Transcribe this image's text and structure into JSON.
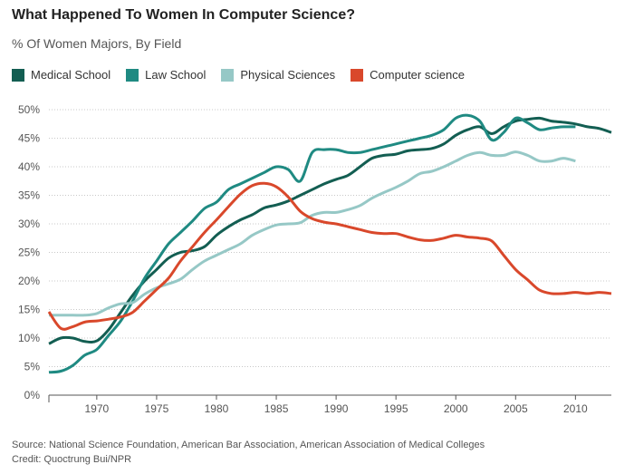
{
  "title": "What Happened To Women In Computer Science?",
  "subtitle": "% Of Women Majors, By Field",
  "footer": {
    "source": "Source: National Science Foundation, American Bar Association, American Association of Medical Colleges",
    "credit": "Credit: Quoctrung Bui/NPR"
  },
  "chart_data": {
    "type": "line",
    "title": "What Happened To Women In Computer Science?",
    "subtitle": "% Of Women Majors, By Field",
    "xlabel": "",
    "ylabel": "",
    "xlim": [
      1966,
      2013
    ],
    "ylim": [
      0,
      50
    ],
    "x_ticks": [
      1970,
      1975,
      1980,
      1985,
      1990,
      1995,
      2000,
      2005,
      2010
    ],
    "x_tick_labels": [
      "1970",
      "1975",
      "1980",
      "1985",
      "1990",
      "1995",
      "2000",
      "2005",
      "2010"
    ],
    "y_ticks": [
      0,
      5,
      10,
      15,
      20,
      25,
      30,
      35,
      40,
      45,
      50
    ],
    "y_tick_labels": [
      "0%",
      "5%",
      "10%",
      "15%",
      "20%",
      "25%",
      "30%",
      "35%",
      "40%",
      "45%",
      "50%"
    ],
    "grid": "horizontal dotted",
    "legend_position": "top-left",
    "series": [
      {
        "name": "Medical School",
        "color": "#135e52",
        "points": [
          [
            1966,
            9
          ],
          [
            1967,
            10
          ],
          [
            1968,
            10
          ],
          [
            1969,
            9.4
          ],
          [
            1970,
            9.5
          ],
          [
            1971,
            11.5
          ],
          [
            1972,
            14.5
          ],
          [
            1973,
            17.5
          ],
          [
            1974,
            20
          ],
          [
            1975,
            22
          ],
          [
            1976,
            24
          ],
          [
            1977,
            25
          ],
          [
            1978,
            25.3
          ],
          [
            1979,
            26
          ],
          [
            1980,
            28
          ],
          [
            1981,
            29.5
          ],
          [
            1982,
            30.7
          ],
          [
            1983,
            31.6
          ],
          [
            1984,
            32.8
          ],
          [
            1985,
            33.3
          ],
          [
            1986,
            34
          ],
          [
            1987,
            35
          ],
          [
            1988,
            36
          ],
          [
            1989,
            37
          ],
          [
            1990,
            37.8
          ],
          [
            1991,
            38.5
          ],
          [
            1992,
            40
          ],
          [
            1993,
            41.5
          ],
          [
            1994,
            42
          ],
          [
            1995,
            42.2
          ],
          [
            1996,
            42.8
          ],
          [
            1997,
            43
          ],
          [
            1998,
            43.2
          ],
          [
            1999,
            44
          ],
          [
            2000,
            45.5
          ],
          [
            2001,
            46.5
          ],
          [
            2002,
            47
          ],
          [
            2003,
            45.8
          ],
          [
            2004,
            47
          ],
          [
            2005,
            48
          ],
          [
            2006,
            48.3
          ],
          [
            2007,
            48.5
          ],
          [
            2008,
            48
          ],
          [
            2009,
            47.8
          ],
          [
            2010,
            47.5
          ],
          [
            2011,
            47
          ],
          [
            2012,
            46.7
          ],
          [
            2013,
            46
          ]
        ]
      },
      {
        "name": "Law School",
        "color": "#1f8a82",
        "points": [
          [
            1966,
            4
          ],
          [
            1967,
            4.2
          ],
          [
            1968,
            5.2
          ],
          [
            1969,
            7
          ],
          [
            1970,
            8
          ],
          [
            1971,
            10.5
          ],
          [
            1972,
            13
          ],
          [
            1973,
            16.5
          ],
          [
            1974,
            20.5
          ],
          [
            1975,
            23.5
          ],
          [
            1976,
            26.5
          ],
          [
            1977,
            28.5
          ],
          [
            1978,
            30.5
          ],
          [
            1979,
            32.7
          ],
          [
            1980,
            33.8
          ],
          [
            1981,
            36
          ],
          [
            1982,
            37
          ],
          [
            1983,
            38
          ],
          [
            1984,
            39
          ],
          [
            1985,
            40
          ],
          [
            1986,
            39.5
          ],
          [
            1987,
            37.5
          ],
          [
            1988,
            42.5
          ],
          [
            1989,
            43
          ],
          [
            1990,
            43
          ],
          [
            1991,
            42.5
          ],
          [
            1992,
            42.5
          ],
          [
            1993,
            43
          ],
          [
            1994,
            43.5
          ],
          [
            1995,
            44
          ],
          [
            1996,
            44.5
          ],
          [
            1997,
            45
          ],
          [
            1998,
            45.5
          ],
          [
            1999,
            46.5
          ],
          [
            2000,
            48.5
          ],
          [
            2001,
            49
          ],
          [
            2002,
            48
          ],
          [
            2003,
            44.7
          ],
          [
            2004,
            46
          ],
          [
            2005,
            48.5
          ],
          [
            2006,
            47.7
          ],
          [
            2007,
            46.5
          ],
          [
            2008,
            46.8
          ],
          [
            2009,
            47
          ],
          [
            2010,
            47
          ]
        ]
      },
      {
        "name": "Physical Sciences",
        "color": "#96c8c6",
        "points": [
          [
            1966,
            14
          ],
          [
            1967,
            14
          ],
          [
            1968,
            14
          ],
          [
            1969,
            14
          ],
          [
            1970,
            14.3
          ],
          [
            1971,
            15.3
          ],
          [
            1972,
            16
          ],
          [
            1973,
            16.2
          ],
          [
            1974,
            17.7
          ],
          [
            1975,
            18.8
          ],
          [
            1976,
            19.5
          ],
          [
            1977,
            20.3
          ],
          [
            1978,
            22
          ],
          [
            1979,
            23.5
          ],
          [
            1980,
            24.5
          ],
          [
            1981,
            25.5
          ],
          [
            1982,
            26.5
          ],
          [
            1983,
            28
          ],
          [
            1984,
            29
          ],
          [
            1985,
            29.8
          ],
          [
            1986,
            30
          ],
          [
            1987,
            30.2
          ],
          [
            1988,
            31.5
          ],
          [
            1989,
            32
          ],
          [
            1990,
            32
          ],
          [
            1991,
            32.5
          ],
          [
            1992,
            33.2
          ],
          [
            1993,
            34.5
          ],
          [
            1994,
            35.5
          ],
          [
            1995,
            36.4
          ],
          [
            1996,
            37.5
          ],
          [
            1997,
            38.8
          ],
          [
            1998,
            39.2
          ],
          [
            1999,
            40
          ],
          [
            2000,
            41
          ],
          [
            2001,
            42
          ],
          [
            2002,
            42.5
          ],
          [
            2003,
            42
          ],
          [
            2004,
            42
          ],
          [
            2005,
            42.6
          ],
          [
            2006,
            42
          ],
          [
            2007,
            41
          ],
          [
            2008,
            41
          ],
          [
            2009,
            41.5
          ],
          [
            2010,
            41
          ]
        ]
      },
      {
        "name": "Computer science",
        "color": "#d9482b",
        "points": [
          [
            1966,
            14.6
          ],
          [
            1967,
            11.7
          ],
          [
            1968,
            12
          ],
          [
            1969,
            12.8
          ],
          [
            1970,
            13
          ],
          [
            1971,
            13.3
          ],
          [
            1972,
            13.7
          ],
          [
            1973,
            14.5
          ],
          [
            1974,
            16.5
          ],
          [
            1975,
            18.5
          ],
          [
            1976,
            20.5
          ],
          [
            1977,
            23.5
          ],
          [
            1978,
            26
          ],
          [
            1979,
            28.5
          ],
          [
            1980,
            30.7
          ],
          [
            1981,
            33
          ],
          [
            1982,
            35.2
          ],
          [
            1983,
            36.7
          ],
          [
            1984,
            37.1
          ],
          [
            1985,
            36.5
          ],
          [
            1986,
            34.7
          ],
          [
            1987,
            32.2
          ],
          [
            1988,
            30.9
          ],
          [
            1989,
            30.3
          ],
          [
            1990,
            30
          ],
          [
            1991,
            29.5
          ],
          [
            1992,
            29
          ],
          [
            1993,
            28.5
          ],
          [
            1994,
            28.3
          ],
          [
            1995,
            28.3
          ],
          [
            1996,
            27.7
          ],
          [
            1997,
            27.2
          ],
          [
            1998,
            27.1
          ],
          [
            1999,
            27.5
          ],
          [
            2000,
            28
          ],
          [
            2001,
            27.7
          ],
          [
            2002,
            27.5
          ],
          [
            2003,
            27
          ],
          [
            2004,
            24.5
          ],
          [
            2005,
            22
          ],
          [
            2006,
            20.2
          ],
          [
            2007,
            18.4
          ],
          [
            2008,
            17.8
          ],
          [
            2009,
            17.8
          ],
          [
            2010,
            18
          ],
          [
            2011,
            17.8
          ],
          [
            2012,
            18
          ],
          [
            2013,
            17.8
          ]
        ]
      }
    ]
  }
}
